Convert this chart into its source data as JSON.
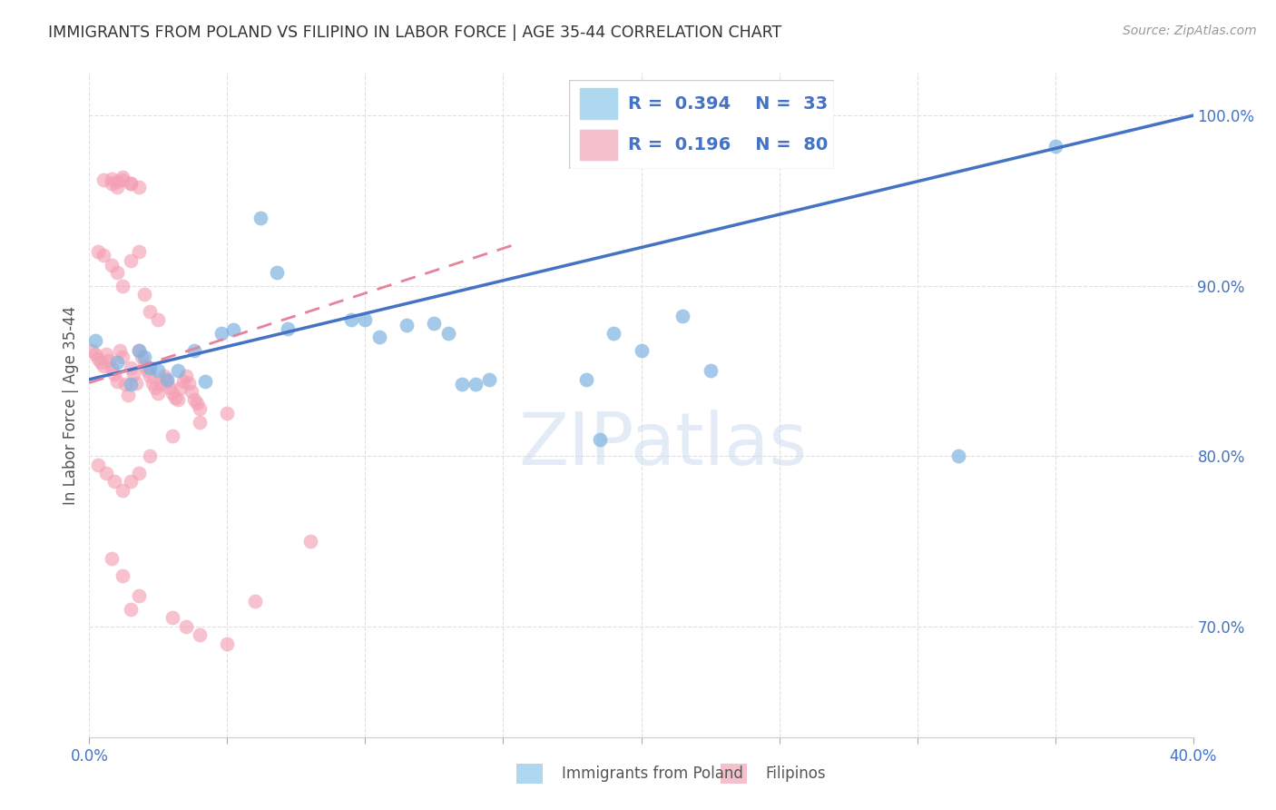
{
  "title": "IMMIGRANTS FROM POLAND VS FILIPINO IN LABOR FORCE | AGE 35-44 CORRELATION CHART",
  "source": "Source: ZipAtlas.com",
  "ylabel": "In Labor Force | Age 35-44",
  "legend_label_blue": "Immigrants from Poland",
  "legend_label_pink": "Filipinos",
  "r_blue": "0.394",
  "n_blue": "33",
  "r_pink": "0.196",
  "n_pink": "80",
  "xlim": [
    0.0,
    0.4
  ],
  "ylim": [
    0.635,
    1.025
  ],
  "yticks": [
    0.7,
    0.8,
    0.9,
    1.0
  ],
  "blue_color": "#7EB3E0",
  "pink_color": "#F4A0B5",
  "blue_line_color": "#4472C4",
  "pink_line_color": "#E8829A",
  "axis_tick_color": "#4472C4",
  "title_color": "#333333",
  "source_color": "#999999",
  "grid_color": "#E0E0E0",
  "watermark_color": "#DDEEFF",
  "blue_x": [
    0.002,
    0.01,
    0.015,
    0.018,
    0.02,
    0.022,
    0.025,
    0.028,
    0.032,
    0.038,
    0.042,
    0.048,
    0.052,
    0.062,
    0.068,
    0.072,
    0.095,
    0.1,
    0.105,
    0.115,
    0.125,
    0.13,
    0.135,
    0.14,
    0.145,
    0.18,
    0.185,
    0.19,
    0.2,
    0.215,
    0.225,
    0.315,
    0.35
  ],
  "blue_y": [
    0.868,
    0.855,
    0.842,
    0.862,
    0.858,
    0.852,
    0.85,
    0.845,
    0.85,
    0.862,
    0.844,
    0.872,
    0.874,
    0.94,
    0.908,
    0.875,
    0.88,
    0.88,
    0.87,
    0.877,
    0.878,
    0.872,
    0.842,
    0.842,
    0.845,
    0.845,
    0.81,
    0.872,
    0.862,
    0.882,
    0.85,
    0.8,
    0.982
  ],
  "pink_x": [
    0.001,
    0.002,
    0.003,
    0.004,
    0.005,
    0.006,
    0.007,
    0.008,
    0.009,
    0.01,
    0.011,
    0.012,
    0.013,
    0.014,
    0.015,
    0.016,
    0.017,
    0.018,
    0.019,
    0.02,
    0.021,
    0.022,
    0.023,
    0.024,
    0.025,
    0.026,
    0.027,
    0.028,
    0.029,
    0.03,
    0.031,
    0.032,
    0.033,
    0.034,
    0.035,
    0.036,
    0.037,
    0.038,
    0.039,
    0.04,
    0.003,
    0.005,
    0.008,
    0.01,
    0.012,
    0.015,
    0.018,
    0.02,
    0.022,
    0.025,
    0.005,
    0.008,
    0.01,
    0.012,
    0.015,
    0.008,
    0.01,
    0.012,
    0.015,
    0.018,
    0.003,
    0.006,
    0.009,
    0.012,
    0.015,
    0.018,
    0.022,
    0.03,
    0.04,
    0.05,
    0.008,
    0.012,
    0.015,
    0.018,
    0.03,
    0.035,
    0.04,
    0.05,
    0.06,
    0.08
  ],
  "pink_y": [
    0.862,
    0.86,
    0.857,
    0.855,
    0.853,
    0.86,
    0.856,
    0.852,
    0.848,
    0.844,
    0.862,
    0.858,
    0.842,
    0.836,
    0.852,
    0.848,
    0.843,
    0.862,
    0.858,
    0.853,
    0.85,
    0.847,
    0.843,
    0.84,
    0.837,
    0.842,
    0.847,
    0.844,
    0.84,
    0.837,
    0.834,
    0.833,
    0.84,
    0.844,
    0.847,
    0.843,
    0.838,
    0.833,
    0.831,
    0.828,
    0.92,
    0.918,
    0.912,
    0.908,
    0.9,
    0.915,
    0.92,
    0.895,
    0.885,
    0.88,
    0.962,
    0.96,
    0.958,
    0.962,
    0.96,
    0.963,
    0.961,
    0.964,
    0.96,
    0.958,
    0.795,
    0.79,
    0.785,
    0.78,
    0.785,
    0.79,
    0.8,
    0.812,
    0.82,
    0.825,
    0.74,
    0.73,
    0.71,
    0.718,
    0.705,
    0.7,
    0.695,
    0.69,
    0.715,
    0.75
  ]
}
